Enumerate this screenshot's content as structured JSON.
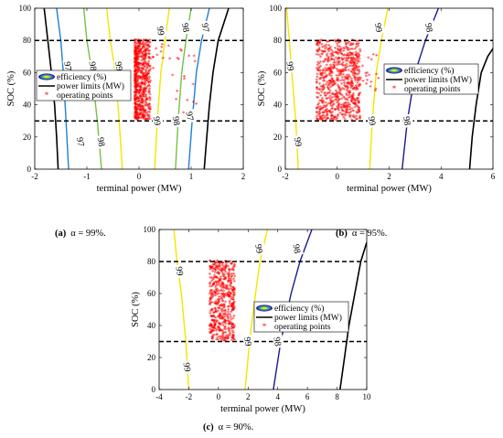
{
  "chart_data": [
    {
      "type": "line",
      "caption_tag": "(a)",
      "caption_text": "α = 99%.",
      "xlabel": "terminal power (MW)",
      "ylabel": "SOC (%)",
      "xlim": [
        -2,
        2
      ],
      "ylim": [
        0,
        100
      ],
      "xticks": [
        -2,
        -1,
        0,
        1,
        2
      ],
      "yticks": [
        0,
        20,
        40,
        60,
        80,
        100
      ],
      "soc_limits": [
        30,
        80
      ],
      "legend": {
        "placement": "middle-left",
        "entries": [
          "efficiency (%)",
          "power limits (MW)",
          "operating points"
        ]
      },
      "power_limits": {
        "left": [
          [
            -1.55,
            0
          ],
          [
            -1.58,
            20
          ],
          [
            -1.62,
            40
          ],
          [
            -1.68,
            60
          ],
          [
            -1.75,
            80
          ],
          [
            -1.82,
            100
          ]
        ],
        "right": [
          [
            1.25,
            0
          ],
          [
            1.3,
            20
          ],
          [
            1.35,
            40
          ],
          [
            1.42,
            60
          ],
          [
            1.52,
            80
          ],
          [
            1.72,
            100
          ]
        ]
      },
      "efficiency_contours": [
        {
          "label": "97",
          "color": "#1f7fd6",
          "points": [
            [
              -1.35,
              0
            ],
            [
              -1.4,
              30
            ],
            [
              -1.45,
              60
            ],
            [
              -1.5,
              80
            ],
            [
              -1.58,
              100
            ]
          ],
          "labels_at": [
            [
              -1.12,
              17
            ],
            [
              -1.36,
              64
            ]
          ]
        },
        {
          "label": "98",
          "color": "#77c043",
          "points": [
            [
              -0.72,
              0
            ],
            [
              -0.8,
              30
            ],
            [
              -0.9,
              60
            ],
            [
              -1.0,
              80
            ],
            [
              -1.06,
              100
            ]
          ],
          "labels_at": [
            [
              -0.72,
              17
            ],
            [
              -0.88,
              64
            ]
          ]
        },
        {
          "label": "99",
          "color": "#f2e600",
          "points": [
            [
              -0.32,
              0
            ],
            [
              -0.38,
              30
            ],
            [
              -0.45,
              60
            ],
            [
              -0.55,
              80
            ],
            [
              -0.62,
              100
            ]
          ],
          "labels_at": [
            [
              -0.38,
              64
            ]
          ]
        },
        {
          "label": "99",
          "color": "#f2e600",
          "points": [
            [
              0.3,
              0
            ],
            [
              0.35,
              30
            ],
            [
              0.42,
              60
            ],
            [
              0.5,
              80
            ],
            [
              0.58,
              100
            ]
          ],
          "labels_at": [
            [
              0.35,
              30
            ],
            [
              0.42,
              86
            ]
          ]
        },
        {
          "label": "98",
          "color": "#77c043",
          "points": [
            [
              0.7,
              0
            ],
            [
              0.75,
              30
            ],
            [
              0.82,
              60
            ],
            [
              0.9,
              80
            ],
            [
              1.0,
              100
            ]
          ],
          "labels_at": [
            [
              0.72,
              30
            ],
            [
              0.9,
              88
            ]
          ]
        },
        {
          "label": "97",
          "color": "#1f7fd6",
          "points": [
            [
              0.95,
              0
            ],
            [
              1.02,
              30
            ],
            [
              1.1,
              60
            ],
            [
              1.2,
              80
            ],
            [
              1.35,
              100
            ]
          ],
          "labels_at": [
            [
              0.98,
              33
            ],
            [
              1.28,
              88
            ]
          ]
        }
      ],
      "operating_points": {
        "dense_region": {
          "x": [
            -0.08,
            0.22
          ],
          "y": [
            30,
            80
          ]
        },
        "scatter_region": {
          "x": [
            0.0,
            1.1
          ],
          "y": [
            34,
            78
          ]
        }
      }
    },
    {
      "type": "line",
      "caption_tag": "(b)",
      "caption_text": "α = 95%.",
      "xlabel": "terminal power (MW)",
      "ylabel": "SOC (%)",
      "xlim": [
        -2,
        6
      ],
      "ylim": [
        0,
        100
      ],
      "xticks": [
        -2,
        0,
        2,
        4,
        6
      ],
      "yticks": [
        0,
        20,
        40,
        60,
        80,
        100
      ],
      "soc_limits": [
        30,
        80
      ],
      "legend": {
        "placement": "middle-right",
        "entries": [
          "efficiency (%)",
          "power limits (MW)",
          "operating points"
        ]
      },
      "power_limits": {
        "right": [
          [
            5.1,
            0
          ],
          [
            5.2,
            20
          ],
          [
            5.35,
            40
          ],
          [
            5.55,
            60
          ],
          [
            5.8,
            70
          ],
          [
            6,
            75
          ]
        ]
      },
      "efficiency_contours": [
        {
          "label": "99",
          "color": "#f2e600",
          "points": [
            [
              -1.5,
              0
            ],
            [
              -1.6,
              30
            ],
            [
              -1.75,
              60
            ],
            [
              -1.85,
              80
            ],
            [
              -1.95,
              100
            ]
          ],
          "labels_at": [
            [
              -1.5,
              17
            ],
            [
              -1.8,
              64
            ]
          ]
        },
        {
          "label": "99",
          "color": "#f2e600",
          "points": [
            [
              1.25,
              0
            ],
            [
              1.35,
              30
            ],
            [
              1.5,
              60
            ],
            [
              1.7,
              80
            ],
            [
              1.95,
              100
            ]
          ],
          "labels_at": [
            [
              1.35,
              30
            ],
            [
              1.6,
              88
            ]
          ]
        },
        {
          "label": "98",
          "color": "#1a1a8c",
          "points": [
            [
              2.5,
              0
            ],
            [
              2.7,
              30
            ],
            [
              3.0,
              60
            ],
            [
              3.4,
              80
            ],
            [
              3.9,
              100
            ]
          ],
          "labels_at": [
            [
              2.7,
              30
            ],
            [
              3.55,
              88
            ]
          ]
        }
      ],
      "operating_points": {
        "dense_region": {
          "x": [
            -0.8,
            0.9
          ],
          "y": [
            30,
            80
          ]
        },
        "scatter_region": {
          "x": [
            0.3,
            1.6
          ],
          "y": [
            40,
            72
          ]
        }
      }
    },
    {
      "type": "line",
      "caption_tag": "(c)",
      "caption_text": "α = 90%.",
      "xlabel": "terminal power (MW)",
      "ylabel": "SOC (%)",
      "xlim": [
        -4,
        10
      ],
      "ylim": [
        0,
        100
      ],
      "xticks": [
        -4,
        -2,
        0,
        2,
        4,
        6,
        8,
        10
      ],
      "yticks": [
        0,
        20,
        40,
        60,
        80,
        100
      ],
      "soc_limits": [
        30,
        80
      ],
      "legend": {
        "placement": "middle-right",
        "entries": [
          "efficiency (%)",
          "power limits (MW)",
          "operating points"
        ]
      },
      "power_limits": {
        "right": [
          [
            8.2,
            0
          ],
          [
            8.5,
            20
          ],
          [
            8.8,
            40
          ],
          [
            9.2,
            60
          ],
          [
            9.6,
            80
          ],
          [
            10,
            92
          ]
        ]
      },
      "efficiency_contours": [
        {
          "label": "99",
          "color": "#f2e600",
          "points": [
            [
              -2.0,
              0
            ],
            [
              -2.2,
              30
            ],
            [
              -2.5,
              60
            ],
            [
              -2.8,
              80
            ],
            [
              -3.0,
              100
            ]
          ],
          "labels_at": [
            [
              -2.1,
              14
            ],
            [
              -2.6,
              74
            ]
          ]
        },
        {
          "label": "99",
          "color": "#f2e600",
          "points": [
            [
              1.8,
              0
            ],
            [
              2.1,
              30
            ],
            [
              2.5,
              60
            ],
            [
              2.8,
              80
            ],
            [
              3.3,
              100
            ]
          ],
          "labels_at": [
            [
              2.0,
              30
            ],
            [
              2.75,
              88
            ]
          ]
        },
        {
          "label": "98",
          "color": "#1a1a8c",
          "points": [
            [
              3.7,
              0
            ],
            [
              4.2,
              30
            ],
            [
              4.9,
              60
            ],
            [
              5.5,
              80
            ],
            [
              6.3,
              100
            ]
          ],
          "labels_at": [
            [
              4.0,
              30
            ],
            [
              5.3,
              88
            ]
          ]
        }
      ],
      "operating_points": {
        "dense_region": {
          "x": [
            -0.6,
            1.1
          ],
          "y": [
            30,
            80
          ]
        },
        "scatter_region": {
          "x": [
            -0.2,
            1.0
          ],
          "y": [
            32,
            78
          ]
        }
      }
    }
  ]
}
